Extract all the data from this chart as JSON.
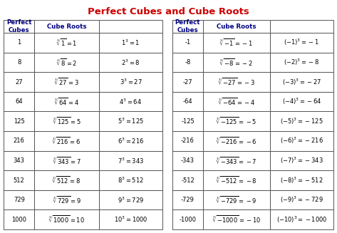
{
  "title": "Perfect Cubes and Cube Roots",
  "title_color": "#cc0000",
  "left_table": {
    "headers": [
      "Perfect\nCubes",
      "Cube Roots",
      ""
    ],
    "rows": [
      [
        "1",
        "$\\sqrt[3]{1}=1$",
        "$1^3=1$"
      ],
      [
        "8",
        "$\\sqrt[3]{8}=2$",
        "$2^3=8$"
      ],
      [
        "27",
        "$\\sqrt[3]{27}=3$",
        "$3^3=27$"
      ],
      [
        "64",
        "$\\sqrt[3]{64}=4$",
        "$4^3=64$"
      ],
      [
        "125",
        "$\\sqrt[3]{125}=5$",
        "$5^3=125$"
      ],
      [
        "216",
        "$\\sqrt[3]{216}=6$",
        "$6^3=216$"
      ],
      [
        "343",
        "$\\sqrt[3]{343}=7$",
        "$7^3=343$"
      ],
      [
        "512",
        "$\\sqrt[3]{512}=8$",
        "$8^3=512$"
      ],
      [
        "729",
        "$\\sqrt[3]{729}=9$",
        "$9^3=729$"
      ],
      [
        "1000",
        "$\\sqrt[3]{1000}=10$",
        "$10^3=1000$"
      ]
    ]
  },
  "right_table": {
    "headers": [
      "Perfect\nCubes",
      "Cube Roots",
      ""
    ],
    "rows": [
      [
        "-1",
        "$\\sqrt[3]{-1}=-1$",
        "$(-1)^3=-1$"
      ],
      [
        "-8",
        "$\\sqrt[3]{-8}=-2$",
        "$(-2)^3=-8$"
      ],
      [
        "-27",
        "$\\sqrt[3]{-27}=-3$",
        "$(-3)^3=-27$"
      ],
      [
        "-64",
        "$\\sqrt[3]{-64}=-4$",
        "$(-4)^3=-64$"
      ],
      [
        "-125",
        "$\\sqrt[3]{-125}=-5$",
        "$(-5)^3=-125$"
      ],
      [
        "-216",
        "$\\sqrt[3]{-216}=-6$",
        "$(-6)^3=-216$"
      ],
      [
        "-343",
        "$\\sqrt[3]{-343}=-7$",
        "$(-7)^3=-343$"
      ],
      [
        "-512",
        "$\\sqrt[3]{-512}=-8$",
        "$(-8)^3=-512$"
      ],
      [
        "-729",
        "$\\sqrt[3]{-729}=-9$",
        "$(-9)^3=-729$"
      ],
      [
        "-1000",
        "$\\sqrt[3]{-1000}=-10$",
        "$(-10)^3=-1000$"
      ]
    ]
  },
  "header_text_color": "#000080",
  "border_color": "#555555",
  "font_size": 5.8,
  "header_font_size": 6.2,
  "title_font_size": 9.5,
  "col1_fs": 6.0,
  "math_fs": 6.0
}
